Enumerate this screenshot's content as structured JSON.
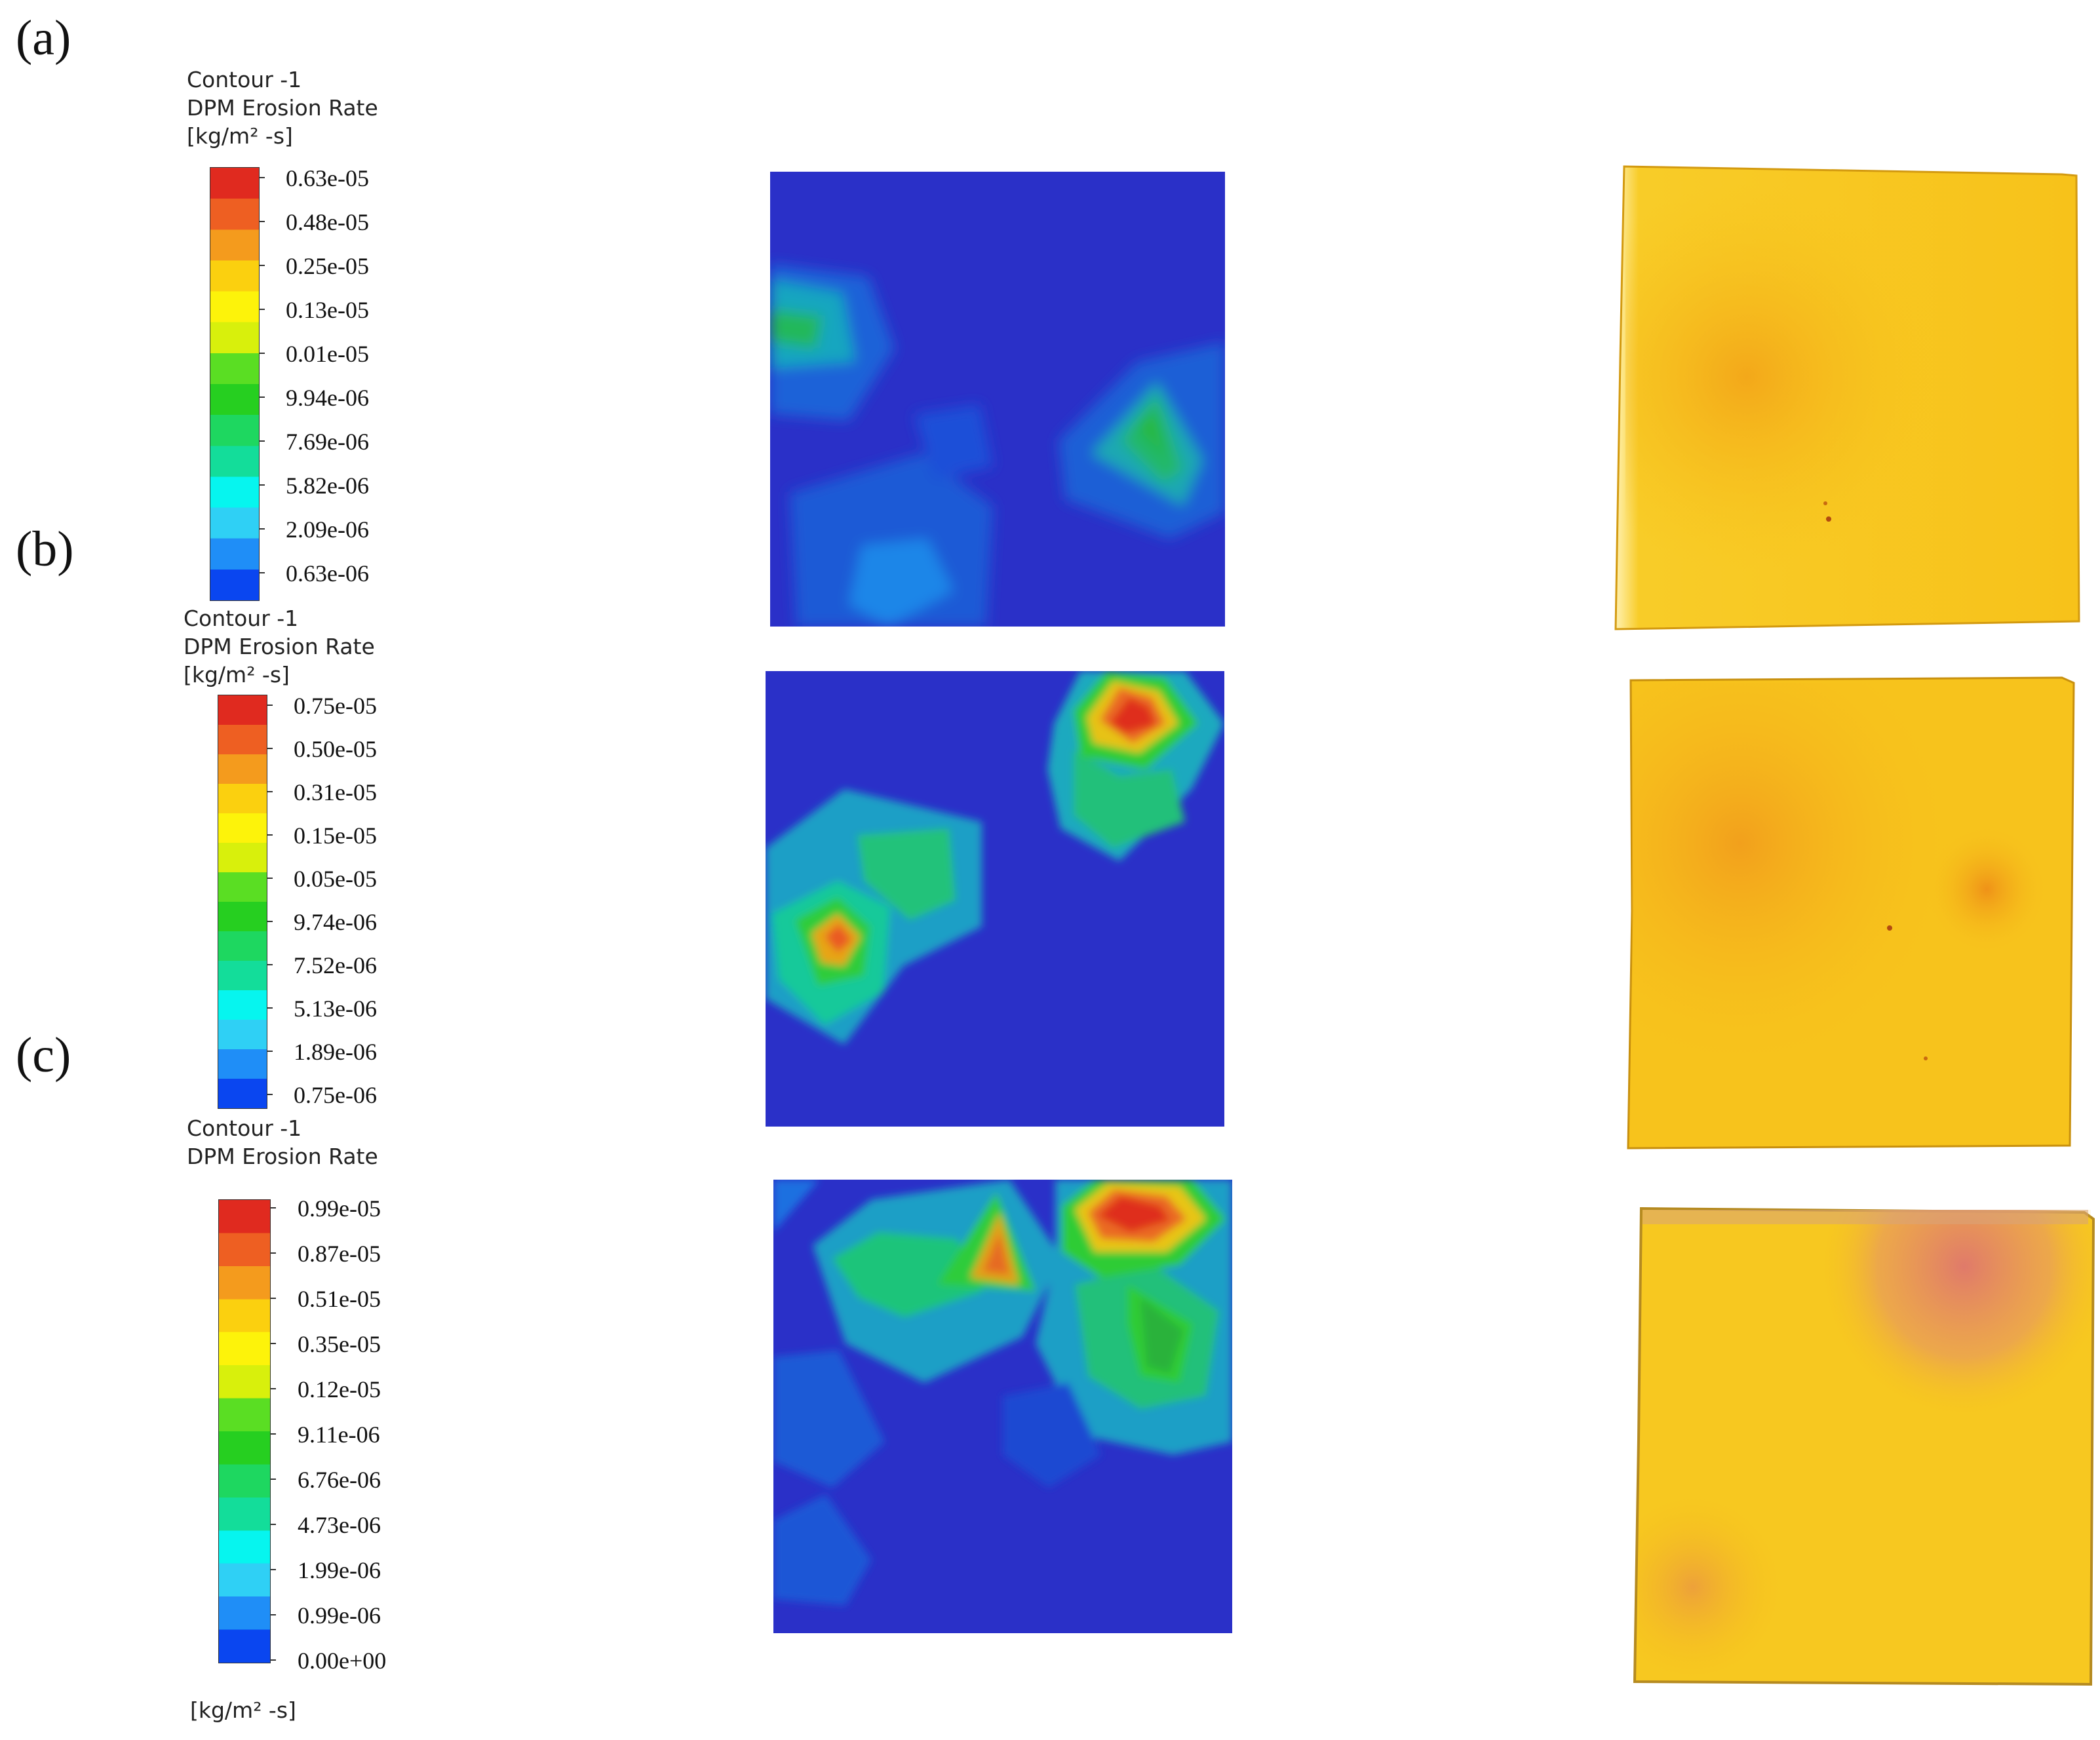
{
  "colors": {
    "scale": [
      "#0a46f0",
      "#1f8ef7",
      "#2fd0f5",
      "#06f5ef",
      "#13dd9a",
      "#1ed760",
      "#26cf20",
      "#5ade23",
      "#d8f00c",
      "#fdf30a",
      "#fbd00f",
      "#f49b1d",
      "#ee5f22",
      "#e02a1f"
    ],
    "contour_bg": "#2a30c8",
    "sample": "#f7c419"
  },
  "panels": [
    {
      "label": "(a)",
      "legend": {
        "title_lines": [
          "Contour -1",
          "DPM Erosion Rate",
          "[kg/m² -s]"
        ],
        "ticks": [
          "0.63e-05",
          "0.48e-05",
          "0.25e-05",
          "0.13e-05",
          "0.01e-05",
          "9.94e-06",
          "7.69e-06",
          "5.82e-06",
          "2.09e-06",
          "0.63e-06"
        ]
      }
    },
    {
      "label": "(b)",
      "legend": {
        "title_lines": [
          "Contour -1",
          "DPM Erosion Rate",
          "[kg/m² -s]"
        ],
        "ticks": [
          "0.75e-05",
          "0.50e-05",
          "0.31e-05",
          "0.15e-05",
          "0.05e-05",
          "9.74e-06",
          "7.52e-06",
          "5.13e-06",
          "1.89e-06",
          "0.75e-06"
        ]
      }
    },
    {
      "label": "(c)",
      "legend": {
        "title_lines": [
          "Contour -1",
          "DPM Erosion Rate"
        ],
        "ticks": [
          "0.99e-05",
          "0.87e-05",
          "0.51e-05",
          "0.35e-05",
          "0.12e-05",
          "9.11e-06",
          "6.76e-06",
          "4.73e-06",
          "1.99e-06",
          "0.99e-06",
          "0.00e+00"
        ],
        "units": "[kg/m² -s]"
      }
    }
  ]
}
